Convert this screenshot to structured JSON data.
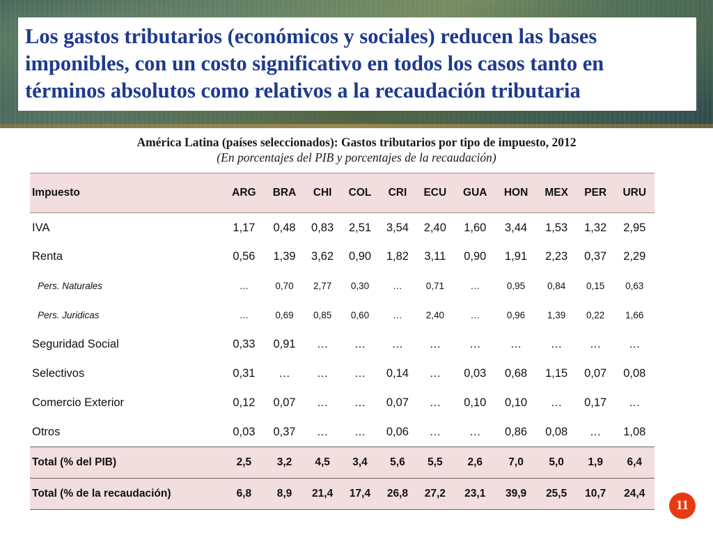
{
  "slide": {
    "title": "Los gastos tributarios (económicos y sociales) reducen las bases imponibles, con un costo significativo en todos los casos tanto en términos absolutos como relativos a la recaudación tributaria",
    "page_number": "11"
  },
  "table": {
    "caption": "América Latina (países seleccionados): Gastos tributarios por tipo de impuesto, 2012",
    "subcaption": "(En porcentajes del PIB y porcentajes de la recaudación)",
    "header": [
      "Impuesto",
      "ARG",
      "BRA",
      "CHI",
      "COL",
      "CRI",
      "ECU",
      "GUA",
      "HON",
      "MEX",
      "PER",
      "URU"
    ],
    "rows": [
      {
        "label": "IVA",
        "values": [
          "1,17",
          "0,48",
          "0,83",
          "2,51",
          "3,54",
          "2,40",
          "1,60",
          "3,44",
          "1,53",
          "1,32",
          "2,95"
        ]
      },
      {
        "label": "Renta",
        "values": [
          "0,56",
          "1,39",
          "3,62",
          "0,90",
          "1,82",
          "3,11",
          "0,90",
          "1,91",
          "2,23",
          "0,37",
          "2,29"
        ]
      },
      {
        "label": "Pers. Naturales",
        "values": [
          "…",
          "0,70",
          "2,77",
          "0,30",
          "…",
          "0,71",
          "…",
          "0,95",
          "0,84",
          "0,15",
          "0,63"
        ]
      },
      {
        "label": "Pers. Juridicas",
        "values": [
          "…",
          "0,69",
          "0,85",
          "0,60",
          "…",
          "2,40",
          "…",
          "0,96",
          "1,39",
          "0,22",
          "1,66"
        ]
      },
      {
        "label": "Seguridad Social",
        "values": [
          "0,33",
          "0,91",
          "…",
          "…",
          "…",
          "…",
          "…",
          "…",
          "…",
          "…",
          "…"
        ]
      },
      {
        "label": "Selectivos",
        "values": [
          "0,31",
          "…",
          "…",
          "…",
          "0,14",
          "…",
          "0,03",
          "0,68",
          "1,15",
          "0,07",
          "0,08"
        ]
      },
      {
        "label": "Comercio Exterior",
        "values": [
          "0,12",
          "0,07",
          "…",
          "…",
          "0,07",
          "…",
          "0,10",
          "0,10",
          "…",
          "0,17",
          "…"
        ]
      },
      {
        "label": "Otros",
        "values": [
          "0,03",
          "0,37",
          "…",
          "…",
          "0,06",
          "…",
          "…",
          "0,86",
          "0,08",
          "…",
          "1,08"
        ]
      },
      {
        "label": "Total (% del PIB)",
        "values": [
          "2,5",
          "3,2",
          "4,5",
          "3,4",
          "5,6",
          "5,5",
          "2,6",
          "7,0",
          "5,0",
          "1,9",
          "6,4"
        ]
      },
      {
        "label": "Total (% de la recaudación)",
        "values": [
          "6,8",
          "8,9",
          "21,4",
          "17,4",
          "26,8",
          "27,2",
          "23,1",
          "39,9",
          "25,5",
          "10,7",
          "24,4"
        ]
      }
    ]
  },
  "colors": {
    "title_text": "#1e3a8c",
    "header_fill": "#f2dede",
    "page_badge": "#e83a12"
  }
}
